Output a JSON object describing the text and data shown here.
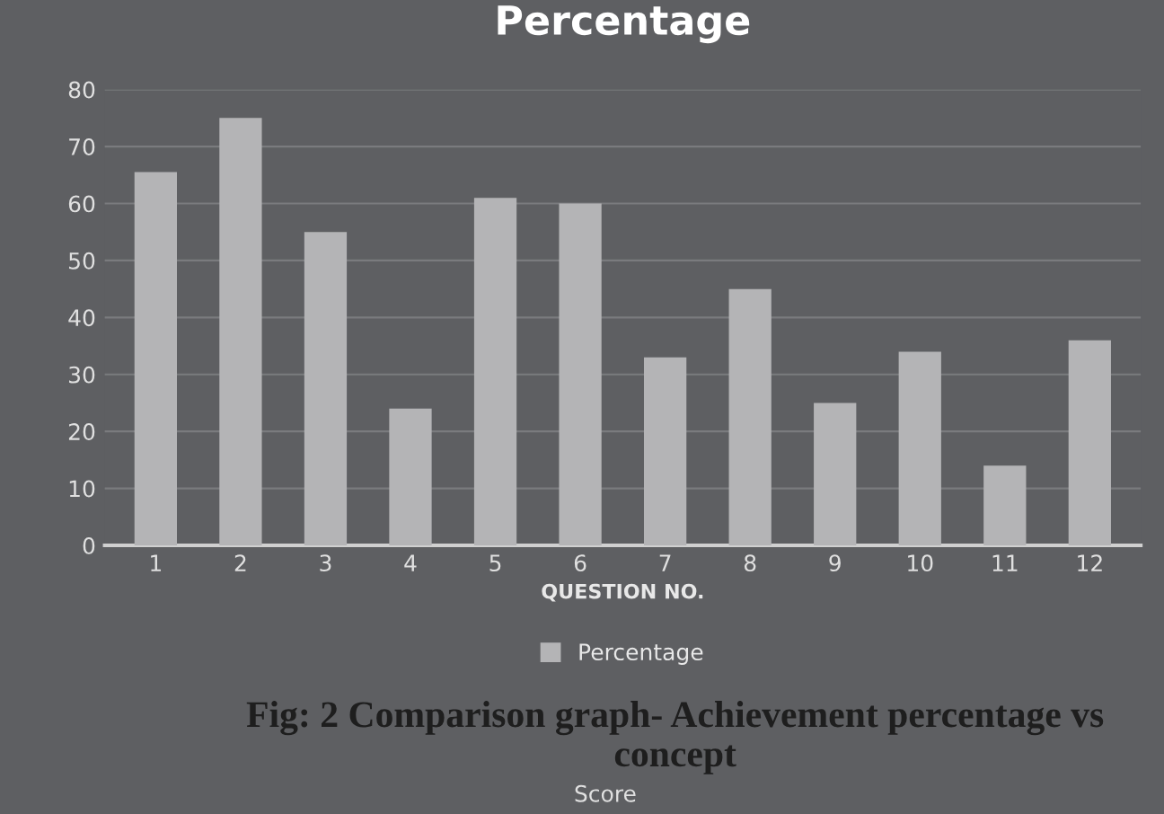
{
  "chart_data": {
    "type": "bar",
    "title": "Percentage",
    "xlabel": "QUESTION NO.",
    "categories": [
      "1",
      "2",
      "3",
      "4",
      "5",
      "6",
      "7",
      "8",
      "9",
      "10",
      "11",
      "12"
    ],
    "series": [
      {
        "name": "Percentage",
        "color": "#b4b4b6",
        "values": [
          65.5,
          75,
          55,
          24,
          61,
          60,
          33,
          45,
          25,
          34,
          14,
          36
        ]
      }
    ],
    "ylim": [
      0,
      80
    ],
    "yticks": [
      0,
      10,
      20,
      30,
      40,
      50,
      60,
      70,
      80
    ],
    "grid": "y",
    "legend": "bottom",
    "annotations": [
      "Score",
      "Fig: 2 Comparison graph- Achievement percentage vs concept"
    ]
  }
}
